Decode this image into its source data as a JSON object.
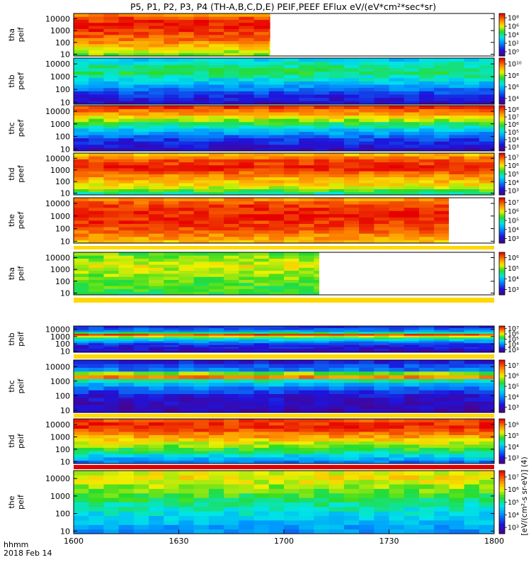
{
  "title": "P5, P1, P2, P3, P4 (TH-A,B,C,D,E) PEIF,PEEF EFlux eV/(eV*cm²*sec*sr)",
  "chart_data": {
    "type": "heatmap",
    "x_axis": {
      "label_line1": "hhmm",
      "label_line2": "2018 Feb 14",
      "ticks": [
        "1600",
        "1630",
        "1700",
        "1730",
        "1800"
      ],
      "range": [
        "1600",
        "1800"
      ]
    },
    "colorbar_unit_label": "[eV/(cm²-s sr-eV)] (4)",
    "colormap": "rainbow (purple-blue-cyan-green-yellow-red)",
    "panels": [
      {
        "ylabel_1": "tha",
        "ylabel_2": "peif",
        "yticks": [
          "10",
          "100",
          "1000",
          "10000"
        ],
        "cb_ticks": [
          "10⁰",
          "10²",
          "10⁴",
          "10⁶",
          "10⁸"
        ],
        "data_end": "1656",
        "top_strip": "",
        "profile": [
          [
            0.0,
            0.6
          ],
          [
            0.35,
            0.85
          ],
          [
            0.7,
            0.98
          ],
          [
            0.9,
            0.92
          ],
          [
            1.0,
            0.8
          ]
        ]
      },
      {
        "ylabel_1": "thb",
        "ylabel_2": "peef",
        "yticks": [
          "10",
          "100",
          "1000",
          "10000"
        ],
        "cb_ticks": [
          "10⁴",
          "10⁶",
          "10⁸",
          "10¹⁰"
        ],
        "data_end": "1800",
        "top_strip": "",
        "profile": [
          [
            0.0,
            0.1
          ],
          [
            0.2,
            0.18
          ],
          [
            0.45,
            0.38
          ],
          [
            0.7,
            0.55
          ],
          [
            0.85,
            0.5
          ],
          [
            1.0,
            0.38
          ]
        ]
      },
      {
        "ylabel_1": "thc",
        "ylabel_2": "peef",
        "yticks": [
          "10",
          "100",
          "1000",
          "10000"
        ],
        "cb_ticks": [
          "10³",
          "10⁴",
          "10⁵",
          "10⁶",
          "10⁷",
          "10⁸"
        ],
        "data_end": "1800",
        "top_strip": "",
        "profile": [
          [
            0.0,
            0.08
          ],
          [
            0.25,
            0.2
          ],
          [
            0.45,
            0.38
          ],
          [
            0.6,
            0.55
          ],
          [
            0.8,
            0.78
          ],
          [
            1.0,
            0.96
          ]
        ]
      },
      {
        "ylabel_1": "thd",
        "ylabel_2": "peef",
        "yticks": [
          "10",
          "100",
          "1000",
          "10000"
        ],
        "cb_ticks": [
          "10³",
          "10⁴",
          "10⁵",
          "10⁶",
          "10⁷"
        ],
        "data_end": "1800",
        "top_strip": "",
        "profile": [
          [
            0.0,
            0.45
          ],
          [
            0.2,
            0.7
          ],
          [
            0.45,
            0.82
          ],
          [
            0.65,
            0.97
          ],
          [
            0.85,
            0.9
          ],
          [
            1.0,
            0.72
          ]
        ]
      },
      {
        "ylabel_1": "the",
        "ylabel_2": "peef",
        "yticks": [
          "10",
          "100",
          "1000",
          "10000"
        ],
        "cb_ticks": [
          "10³",
          "10⁴",
          "10⁵",
          "10⁶",
          "10⁷"
        ],
        "data_end": "1747",
        "top_strip": "",
        "profile": [
          [
            0.0,
            0.75
          ],
          [
            0.3,
            0.9
          ],
          [
            0.6,
            0.97
          ],
          [
            0.85,
            0.93
          ],
          [
            1.0,
            0.8
          ]
        ]
      },
      {
        "ylabel_1": "tha",
        "ylabel_2": "peif",
        "yticks": [
          "10",
          "100",
          "1000",
          "10000"
        ],
        "cb_ticks": [
          "10³",
          "10⁴",
          "10⁵",
          "10⁶"
        ],
        "data_end": "1710",
        "top_strip": "#ffd800",
        "profile": [
          [
            0.0,
            0.55
          ],
          [
            0.4,
            0.62
          ],
          [
            0.7,
            0.7
          ],
          [
            1.0,
            0.6
          ]
        ]
      },
      {
        "ylabel_1": "thb",
        "ylabel_2": "peif",
        "yticks": [
          "10",
          "100",
          "1000",
          "10000"
        ],
        "cb_ticks": [
          "10³",
          "10⁴",
          "10⁵",
          "10⁶",
          "10⁷"
        ],
        "data_end": "1800",
        "top_strip": "#ffd800",
        "profile": [
          [
            0.0,
            0.08
          ],
          [
            0.3,
            0.18
          ],
          [
            0.55,
            0.5
          ],
          [
            0.68,
            0.92
          ],
          [
            0.78,
            0.35
          ],
          [
            1.0,
            0.15
          ]
        ]
      },
      {
        "ylabel_1": "thc",
        "ylabel_2": "peif",
        "yticks": [
          "10",
          "100",
          "1000",
          "10000"
        ],
        "cb_ticks": [
          "10³",
          "10⁴",
          "10⁵",
          "10⁶",
          "10⁷"
        ],
        "data_end": "1800",
        "top_strip": "#ffd800",
        "profile": [
          [
            0.0,
            0.06
          ],
          [
            0.35,
            0.14
          ],
          [
            0.6,
            0.45
          ],
          [
            0.7,
            0.95
          ],
          [
            0.8,
            0.3
          ],
          [
            1.0,
            0.12
          ]
        ]
      },
      {
        "ylabel_1": "thd",
        "ylabel_2": "peif",
        "yticks": [
          "10",
          "100",
          "1000",
          "10000"
        ],
        "cb_ticks": [
          "10³",
          "10⁴",
          "10⁵",
          "10⁶"
        ],
        "data_end": "1800",
        "top_strip": "#ffd800",
        "profile": [
          [
            0.0,
            0.25
          ],
          [
            0.3,
            0.55
          ],
          [
            0.6,
            0.8
          ],
          [
            0.85,
            0.97
          ],
          [
            1.0,
            0.9
          ]
        ]
      },
      {
        "ylabel_1": "the",
        "ylabel_2": "peif",
        "yticks": [
          "10",
          "100",
          "1000",
          "10000"
        ],
        "cb_ticks": [
          "10³",
          "10⁴",
          "10⁵",
          "10⁶",
          "10⁷"
        ],
        "data_end": "1800",
        "top_strip": "#e00000",
        "profile": [
          [
            0.0,
            0.3
          ],
          [
            0.35,
            0.45
          ],
          [
            0.7,
            0.62
          ],
          [
            0.9,
            0.72
          ],
          [
            1.0,
            0.68
          ]
        ]
      }
    ]
  }
}
